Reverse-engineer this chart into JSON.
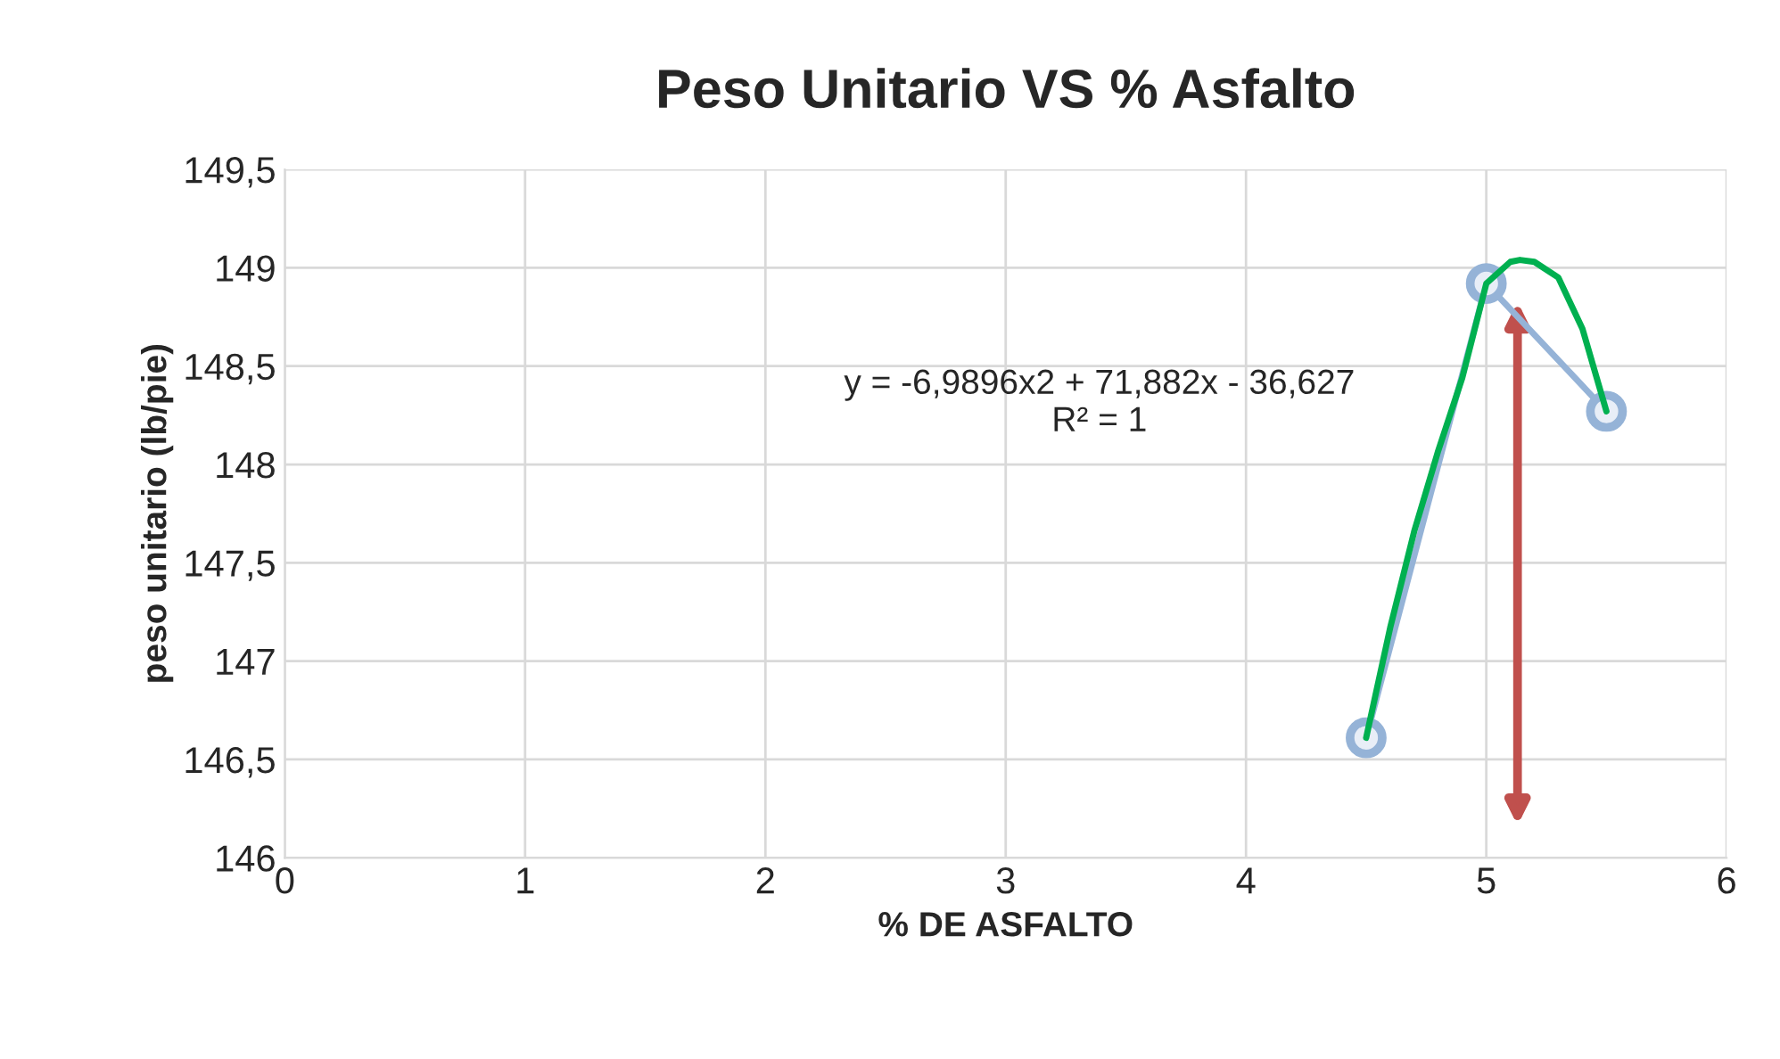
{
  "chart_data": {
    "type": "line",
    "title": "Peso Unitario VS % Asfalto",
    "xlabel": "% DE ASFALTO",
    "ylabel": "peso unitario (lb/pie)",
    "series": [
      {
        "color": "#95b3d7",
        "x": [
          4.5,
          5,
          5.5
        ],
        "values": [
          146.61,
          148.92,
          148.27
        ],
        "marker": "circle"
      },
      {
        "color": "#00b050",
        "x": [
          4.5,
          4.6,
          4.7,
          4.8,
          4.9,
          5.0,
          5.1,
          5.14,
          5.2,
          5.3,
          5.4,
          5.5
        ],
        "values": [
          146.61,
          147.17,
          147.66,
          148.07,
          148.44,
          148.92,
          149.03,
          149.04,
          149.03,
          148.95,
          148.69,
          148.27
        ],
        "marker": "none"
      }
    ],
    "annotations": [
      "y = -6,9896x2 + 71,882x - 36,627\nR² = 1"
    ],
    "xlim": [
      0,
      6
    ],
    "xticks": [
      0,
      1,
      2,
      3,
      4,
      5,
      6
    ],
    "ylim": [
      146,
      149.5
    ],
    "yticks": [
      146,
      {
        "value": 146.5,
        "label": "146,5"
      },
      147,
      {
        "value": 147.5,
        "label": "147,5"
      },
      148,
      {
        "value": 148.5,
        "label": "148,5"
      },
      149,
      {
        "value": 149.5,
        "label": "149,5"
      }
    ],
    "grid": true,
    "legend": false
  }
}
